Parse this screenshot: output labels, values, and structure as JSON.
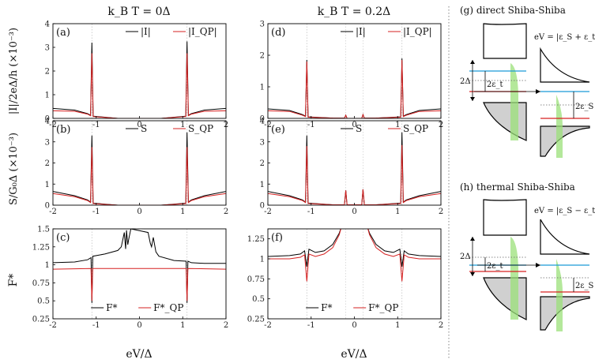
{
  "column_titles": [
    "k_B T = 0Δ",
    "k_B T = 0.2Δ"
  ],
  "chart_data": [
    {
      "type": "line",
      "panel": "(a)",
      "column": 0,
      "row": 0,
      "ylabel": "|I|/2eΔ/h (×10⁻³)",
      "xlim": [
        -2,
        2
      ],
      "ylim": [
        0,
        4
      ],
      "xticks": [
        -2,
        -1,
        0,
        1,
        2
      ],
      "yticks": [
        0,
        1,
        2,
        3,
        4
      ],
      "legend": [
        "|I|",
        "|I_QP|"
      ],
      "legend_position": "top-right",
      "series": [
        {
          "name": "|I|",
          "color": "#000000",
          "baseline": [
            [
              -2,
              0.42
            ],
            [
              -1.5,
              0.35
            ],
            [
              -1.2,
              0.2
            ],
            [
              -1.1,
              0.1
            ],
            [
              -0.5,
              0
            ],
            [
              0,
              0
            ],
            [
              0.5,
              0
            ],
            [
              1.1,
              0.1
            ],
            [
              1.2,
              0.2
            ],
            [
              1.5,
              0.35
            ],
            [
              2,
              0.42
            ]
          ],
          "peaks": [
            [
              -1.1,
              3.2
            ],
            [
              1.1,
              3.25
            ]
          ]
        },
        {
          "name": "|I_QP|",
          "color": "#d62020",
          "baseline": [
            [
              -2,
              0.32
            ],
            [
              -1.5,
              0.3
            ],
            [
              -1.2,
              0.18
            ],
            [
              -1.1,
              0.08
            ],
            [
              -0.5,
              0
            ],
            [
              0,
              0
            ],
            [
              0.5,
              0
            ],
            [
              1.1,
              0.08
            ],
            [
              1.2,
              0.18
            ],
            [
              1.5,
              0.3
            ],
            [
              2,
              0.32
            ]
          ],
          "peaks": [
            [
              -1.1,
              2.75
            ],
            [
              1.1,
              2.75
            ]
          ]
        }
      ]
    },
    {
      "type": "line",
      "panel": "(d)",
      "column": 1,
      "row": 0,
      "xlim": [
        -2,
        2
      ],
      "ylim": [
        0,
        3
      ],
      "xticks": [
        -2,
        -1,
        0,
        1,
        2
      ],
      "yticks": [
        0,
        1,
        2,
        3
      ],
      "legend": [
        "|I|",
        "|I_QP|"
      ],
      "legend_position": "top-right",
      "series": [
        {
          "name": "|I|",
          "color": "#000000",
          "baseline": [
            [
              -2,
              0.3
            ],
            [
              -1.5,
              0.25
            ],
            [
              -1.2,
              0.12
            ],
            [
              -1.1,
              0.05
            ],
            [
              -0.5,
              0.01
            ],
            [
              0,
              0
            ],
            [
              0.5,
              0.01
            ],
            [
              1.1,
              0.05
            ],
            [
              1.2,
              0.12
            ],
            [
              1.5,
              0.25
            ],
            [
              2,
              0.3
            ]
          ],
          "peaks": [
            [
              -1.1,
              1.85
            ],
            [
              -0.2,
              0.1
            ],
            [
              0.2,
              0.12
            ],
            [
              1.1,
              1.9
            ]
          ]
        },
        {
          "name": "|I_QP|",
          "color": "#d62020",
          "baseline": [
            [
              -2,
              0.24
            ],
            [
              -1.5,
              0.22
            ],
            [
              -1.2,
              0.1
            ],
            [
              -1.1,
              0.04
            ],
            [
              -0.5,
              0.01
            ],
            [
              0,
              0
            ],
            [
              0.5,
              0.01
            ],
            [
              1.1,
              0.04
            ],
            [
              1.2,
              0.1
            ],
            [
              1.5,
              0.22
            ],
            [
              2,
              0.24
            ]
          ],
          "peaks": [
            [
              -1.1,
              1.8
            ],
            [
              -0.2,
              0.1
            ],
            [
              0.2,
              0.12
            ],
            [
              1.1,
              1.85
            ]
          ]
        }
      ]
    },
    {
      "type": "line",
      "panel": "(b)",
      "column": 0,
      "row": 1,
      "ylabel": "S/G₀Δ (×10⁻³)",
      "xlim": [
        -2,
        2
      ],
      "ylim": [
        0,
        4
      ],
      "xticks": [
        -2,
        -1,
        0,
        1,
        2
      ],
      "yticks": [
        0,
        1,
        2,
        3,
        4
      ],
      "legend": [
        "S",
        "S_QP"
      ],
      "legend_position": "top-right",
      "series": [
        {
          "name": "S",
          "color": "#000000",
          "baseline": [
            [
              -2,
              0.65
            ],
            [
              -1.5,
              0.45
            ],
            [
              -1.2,
              0.25
            ],
            [
              -1.1,
              0.1
            ],
            [
              -0.5,
              0
            ],
            [
              0,
              0
            ],
            [
              0.5,
              0
            ],
            [
              1.1,
              0.1
            ],
            [
              1.2,
              0.25
            ],
            [
              1.5,
              0.45
            ],
            [
              2,
              0.65
            ]
          ],
          "peaks": [
            [
              -1.1,
              3.3
            ],
            [
              1.1,
              3.45
            ]
          ]
        },
        {
          "name": "S_QP",
          "color": "#d62020",
          "baseline": [
            [
              -2,
              0.55
            ],
            [
              -1.5,
              0.4
            ],
            [
              -1.2,
              0.22
            ],
            [
              -1.1,
              0.08
            ],
            [
              -0.5,
              0
            ],
            [
              0,
              0
            ],
            [
              0.5,
              0
            ],
            [
              1.1,
              0.08
            ],
            [
              1.2,
              0.22
            ],
            [
              1.5,
              0.4
            ],
            [
              2,
              0.55
            ]
          ],
          "peaks": [
            [
              -1.1,
              2.75
            ],
            [
              1.1,
              2.75
            ]
          ]
        }
      ]
    },
    {
      "type": "line",
      "panel": "(e)",
      "column": 1,
      "row": 1,
      "xlim": [
        -2,
        2
      ],
      "ylim": [
        0,
        4
      ],
      "xticks": [
        -2,
        -1,
        0,
        1,
        2
      ],
      "yticks": [
        0,
        1,
        2,
        3,
        4
      ],
      "legend": [
        "S",
        "S_QP"
      ],
      "legend_position": "top-right",
      "series": [
        {
          "name": "S",
          "color": "#000000",
          "baseline": [
            [
              -2,
              0.65
            ],
            [
              -1.5,
              0.45
            ],
            [
              -1.2,
              0.25
            ],
            [
              -1.1,
              0.1
            ],
            [
              -0.5,
              0.02
            ],
            [
              0,
              0.02
            ],
            [
              0.5,
              0.02
            ],
            [
              1.1,
              0.1
            ],
            [
              1.2,
              0.25
            ],
            [
              1.5,
              0.45
            ],
            [
              2,
              0.65
            ]
          ],
          "peaks": [
            [
              -1.1,
              3.3
            ],
            [
              -0.2,
              0.7
            ],
            [
              0.2,
              0.75
            ],
            [
              1.1,
              3.45
            ]
          ]
        },
        {
          "name": "S_QP",
          "color": "#d62020",
          "baseline": [
            [
              -2,
              0.55
            ],
            [
              -1.5,
              0.4
            ],
            [
              -1.2,
              0.22
            ],
            [
              -1.1,
              0.08
            ],
            [
              -0.5,
              0.02
            ],
            [
              0,
              0.02
            ],
            [
              0.5,
              0.02
            ],
            [
              1.1,
              0.08
            ],
            [
              1.2,
              0.22
            ],
            [
              1.5,
              0.4
            ],
            [
              2,
              0.55
            ]
          ],
          "peaks": [
            [
              -1.1,
              2.8
            ],
            [
              -0.2,
              0.7
            ],
            [
              0.2,
              0.75
            ],
            [
              1.1,
              2.85
            ]
          ]
        }
      ]
    },
    {
      "type": "line",
      "panel": "(c)",
      "column": 0,
      "row": 2,
      "ylabel": "F*",
      "xlabel": "eV/Δ",
      "xlim": [
        -2,
        2
      ],
      "ylim": [
        0.25,
        1.5
      ],
      "xticks": [
        -2,
        -1,
        0,
        1,
        2
      ],
      "yticks": [
        0.25,
        0.5,
        0.75,
        1,
        1.25,
        1.5
      ],
      "legend": [
        "F*",
        "F*_QP"
      ],
      "legend_position": "bottom-center",
      "series": [
        {
          "name": "F*",
          "color": "#000000",
          "points": [
            [
              -2,
              1.03
            ],
            [
              -1.5,
              1.04
            ],
            [
              -1.2,
              1.07
            ],
            [
              -1.12,
              1.1
            ],
            [
              -1.1,
              0.47
            ],
            [
              -1.08,
              1.12
            ],
            [
              -0.8,
              1.15
            ],
            [
              -0.5,
              1.2
            ],
            [
              -0.42,
              1.25
            ],
            [
              -0.35,
              1.45
            ],
            [
              -0.32,
              1.22
            ],
            [
              -0.3,
              1.48
            ],
            [
              -0.27,
              1.28
            ],
            [
              -0.25,
              1.35
            ],
            [
              -0.2,
              1.5
            ],
            [
              0.2,
              1.45
            ],
            [
              0.25,
              1.3
            ],
            [
              0.28,
              1.25
            ],
            [
              0.32,
              1.38
            ],
            [
              0.38,
              1.18
            ],
            [
              0.45,
              1.12
            ],
            [
              0.8,
              1.06
            ],
            [
              1.08,
              1.05
            ],
            [
              1.1,
              0.47
            ],
            [
              1.12,
              1.05
            ],
            [
              1.2,
              1.03
            ],
            [
              1.5,
              1.02
            ],
            [
              2,
              1.02
            ]
          ]
        },
        {
          "name": "F*_QP",
          "color": "#d62020",
          "points": [
            [
              -2,
              0.94
            ],
            [
              -1.12,
              0.95
            ],
            [
              -1.1,
              0.5
            ],
            [
              -1.08,
              0.95
            ],
            [
              1.08,
              0.95
            ],
            [
              1.1,
              0.5
            ],
            [
              1.12,
              0.95
            ],
            [
              2,
              0.94
            ]
          ]
        }
      ]
    },
    {
      "type": "line",
      "panel": "(f)",
      "column": 1,
      "row": 2,
      "xlabel": "eV/Δ",
      "xlim": [
        -2,
        2
      ],
      "ylim": [
        0.25,
        1.375
      ],
      "xticks": [
        -2,
        -1,
        0,
        1,
        2
      ],
      "yticks": [
        0.25,
        0.5,
        0.75,
        1,
        1.25
      ],
      "legend": [
        "F*",
        "F*_QP"
      ],
      "legend_position": "bottom-center",
      "series": [
        {
          "name": "F*",
          "color": "#000000",
          "points": [
            [
              -2,
              1.03
            ],
            [
              -1.5,
              1.04
            ],
            [
              -1.25,
              1.06
            ],
            [
              -1.15,
              1.1
            ],
            [
              -1.1,
              0.9
            ],
            [
              -1.05,
              1.12
            ],
            [
              -0.9,
              1.08
            ],
            [
              -0.7,
              1.1
            ],
            [
              -0.5,
              1.18
            ],
            [
              -0.35,
              1.32
            ],
            [
              -0.3,
              1.4
            ],
            [
              0.3,
              1.4
            ],
            [
              0.35,
              1.32
            ],
            [
              0.5,
              1.18
            ],
            [
              0.7,
              1.1
            ],
            [
              0.9,
              1.08
            ],
            [
              1.05,
              1.12
            ],
            [
              1.1,
              0.9
            ],
            [
              1.15,
              1.1
            ],
            [
              1.25,
              1.06
            ],
            [
              1.5,
              1.04
            ],
            [
              2,
              1.03
            ]
          ]
        },
        {
          "name": "F*_QP",
          "color": "#d62020",
          "points": [
            [
              -2,
              1.0
            ],
            [
              -1.5,
              1.0
            ],
            [
              -1.25,
              1.02
            ],
            [
              -1.15,
              1.05
            ],
            [
              -1.1,
              0.72
            ],
            [
              -1.05,
              1.06
            ],
            [
              -0.9,
              1.03
            ],
            [
              -0.7,
              1.06
            ],
            [
              -0.5,
              1.14
            ],
            [
              -0.35,
              1.3
            ],
            [
              -0.3,
              1.4
            ],
            [
              0.3,
              1.4
            ],
            [
              0.35,
              1.3
            ],
            [
              0.5,
              1.14
            ],
            [
              0.7,
              1.06
            ],
            [
              0.9,
              1.03
            ],
            [
              1.05,
              1.06
            ],
            [
              1.1,
              0.72
            ],
            [
              1.15,
              1.05
            ],
            [
              1.25,
              1.02
            ],
            [
              1.5,
              1.0
            ],
            [
              2,
              1.0
            ]
          ]
        }
      ]
    }
  ],
  "diagrams": {
    "g": {
      "title": "(g) direct Shiba-Shiba",
      "condition": "eV = |ε_S + ε_t|",
      "gap_label": "2Δ",
      "eps_t_label": "2ε_t",
      "eps_s_label": "2ε_S"
    },
    "h": {
      "title": "(h) thermal Shiba-Shiba",
      "condition": "eV = |ε_S − ε_t|",
      "gap_label": "2Δ",
      "eps_t_label": "2ε_t",
      "eps_s_label": "2ε_S"
    },
    "colors": {
      "blue_level": "#1a9ad6",
      "red_level": "#d62020",
      "green_fill": "#9be07a",
      "gray_fill": "#d0d0d0"
    }
  }
}
